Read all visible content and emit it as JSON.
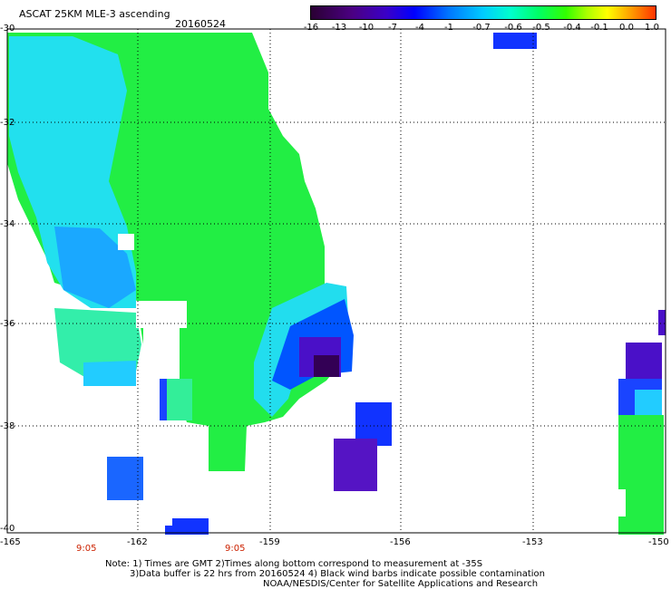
{
  "header": {
    "title": "ASCAT 25KM MLE-3 ascending",
    "date": "20160524"
  },
  "colorbar": {
    "ticks": [
      "-16",
      "-13",
      "-10",
      "-7",
      "-4",
      "-1",
      "-0.7",
      "-0.6",
      "-0.5",
      "-0.4",
      "-0.1",
      "0.0",
      "1.0"
    ],
    "colors": [
      "#2a0033",
      "#4b0082",
      "#3a00c8",
      "#0000ff",
      "#0077ff",
      "#00ccff",
      "#00ffcc",
      "#00ff66",
      "#33ff00",
      "#aaff00",
      "#ffff00",
      "#ffaa00",
      "#ff3300"
    ]
  },
  "map": {
    "lat_labels": [
      "-30",
      "-32",
      "-34",
      "-36",
      "-38",
      "-40"
    ],
    "lon_labels": [
      "-165",
      "-162",
      "-159",
      "-156",
      "-153",
      "-150"
    ],
    "time_labels": [
      "9:05",
      "9:05"
    ]
  },
  "footer": {
    "note_line1": "Note: 1) Times are GMT 2)Times along bottom correspond to measurement at -35S",
    "note_line2": "3)Data buffer is 22 hrs from 20160524 4) Black wind barbs indicate possible contamination",
    "credit": "NOAA/NESDIS/Center for Satellite Applications and Research"
  }
}
